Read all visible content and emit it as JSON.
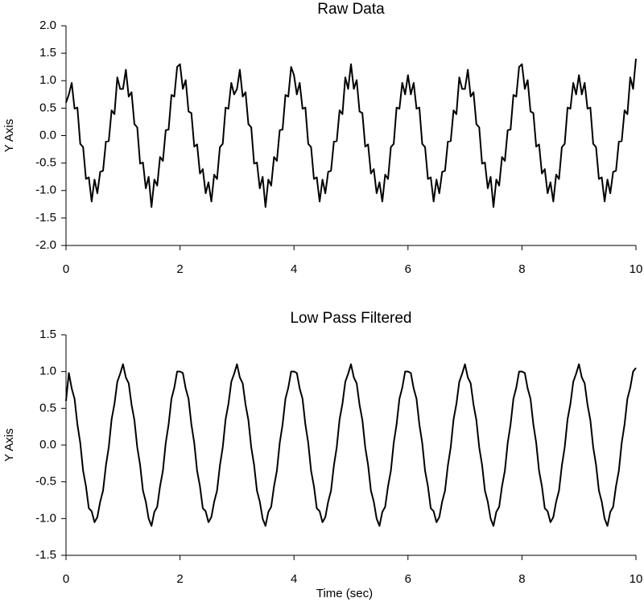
{
  "chart_data": [
    {
      "type": "line",
      "title": "Raw Data",
      "ylabel": "Y Axis",
      "xlim": [
        0,
        10
      ],
      "xticks": [
        0,
        2,
        4,
        6,
        8,
        10
      ],
      "ylim": [
        -2,
        2
      ],
      "yticks": [
        {
          "value": -2,
          "label": "-2.0"
        },
        -1.5,
        {
          "value": -1,
          "label": "-1.0"
        },
        -0.5,
        {
          "value": 0,
          "label": "0.0"
        },
        0.5,
        {
          "value": 1,
          "label": "1.0"
        },
        1.5,
        {
          "value": 2,
          "label": "2.0"
        }
      ],
      "x": [
        0,
        0.05,
        0.1,
        0.15,
        0.2,
        0.25,
        0.3,
        0.35,
        0.4,
        0.45,
        0.5,
        0.55,
        0.6,
        0.65,
        0.7,
        0.75,
        0.8,
        0.85,
        0.9,
        0.95,
        1,
        1.05,
        1.1,
        1.15,
        1.2,
        1.25,
        1.3,
        1.35,
        1.4,
        1.45,
        1.5,
        1.55,
        1.6,
        1.65,
        1.7,
        1.75,
        1.8,
        1.85,
        1.9,
        1.95,
        2,
        2.05,
        2.1,
        2.15,
        2.2,
        2.25,
        2.3,
        2.35,
        2.4,
        2.45,
        2.5,
        2.55,
        2.6,
        2.65,
        2.7,
        2.75,
        2.8,
        2.85,
        2.9,
        2.95,
        3,
        3.05,
        3.1,
        3.15,
        3.2,
        3.25,
        3.3,
        3.35,
        3.4,
        3.45,
        3.5,
        3.55,
        3.6,
        3.65,
        3.7,
        3.75,
        3.8,
        3.85,
        3.9,
        3.95,
        4,
        4.05,
        4.1,
        4.15,
        4.2,
        4.25,
        4.3,
        4.35,
        4.4,
        4.45,
        4.5,
        4.55,
        4.6,
        4.65,
        4.7,
        4.75,
        4.8,
        4.85,
        4.9,
        4.95,
        5,
        5.05,
        5.1,
        5.15,
        5.2,
        5.25,
        5.3,
        5.35,
        5.4,
        5.45,
        5.5,
        5.55,
        5.6,
        5.65,
        5.7,
        5.75,
        5.8,
        5.85,
        5.9,
        5.95,
        6,
        6.05,
        6.1,
        6.15,
        6.2,
        6.25,
        6.3,
        6.35,
        6.4,
        6.45,
        6.5,
        6.55,
        6.6,
        6.65,
        6.7,
        6.75,
        6.8,
        6.85,
        6.9,
        6.95,
        7,
        7.05,
        7.1,
        7.15,
        7.2,
        7.25,
        7.3,
        7.35,
        7.4,
        7.45,
        7.5,
        7.55,
        7.6,
        7.65,
        7.7,
        7.75,
        7.8,
        7.85,
        7.9,
        7.95,
        8,
        8.05,
        8.1,
        8.15,
        8.2,
        8.25,
        8.3,
        8.35,
        8.4,
        8.45,
        8.5,
        8.55,
        8.6,
        8.65,
        8.7,
        8.75,
        8.8,
        8.85,
        8.9,
        8.95,
        9,
        9.05,
        9.1,
        9.15,
        9.2,
        9.25,
        9.3,
        9.35,
        9.4,
        9.45,
        9.5,
        9.55,
        9.6,
        9.65,
        9.7,
        9.75,
        9.8,
        9.85,
        9.9,
        9.95,
        10
      ],
      "series": [
        {
          "color": "#000000",
          "values": [
            0.6,
            0.75,
            0.96,
            0.49,
            0.51,
            -0.15,
            -0.21,
            -0.79,
            -0.76,
            -1.2,
            -0.8,
            -1.05,
            -0.66,
            -0.64,
            -0.11,
            -0.1,
            0.46,
            0.39,
            1.06,
            0.85,
            0.85,
            1.2,
            0.71,
            0.79,
            0.21,
            0.15,
            -0.51,
            -0.49,
            -0.96,
            -0.75,
            -1.3,
            -0.8,
            -0.91,
            -0.39,
            -0.46,
            0.1,
            0.11,
            0.74,
            0.71,
            1.25,
            1.3,
            0.85,
            1.01,
            0.44,
            0.41,
            -0.2,
            -0.16,
            -0.69,
            -0.61,
            -1.05,
            -0.85,
            -1.2,
            -0.71,
            -0.79,
            -0.21,
            -0.15,
            0.51,
            0.49,
            0.96,
            0.75,
            0.85,
            1.2,
            0.71,
            0.79,
            0.21,
            0.15,
            -0.51,
            -0.49,
            -0.96,
            -0.75,
            -1.3,
            -0.8,
            -0.91,
            -0.39,
            -0.46,
            0.1,
            0.11,
            0.74,
            0.71,
            1.25,
            1.1,
            0.75,
            0.96,
            0.49,
            0.51,
            -0.15,
            -0.21,
            -0.79,
            -0.76,
            -1.2,
            -0.8,
            -1.05,
            -0.66,
            -0.64,
            -0.11,
            -0.1,
            0.46,
            0.39,
            1.06,
            0.85,
            1.3,
            0.85,
            1.01,
            0.44,
            0.41,
            -0.2,
            -0.16,
            -0.69,
            -0.61,
            -1.05,
            -0.85,
            -1.2,
            -0.71,
            -0.79,
            -0.21,
            -0.15,
            0.51,
            0.49,
            0.96,
            0.75,
            1.1,
            0.75,
            0.96,
            0.49,
            0.51,
            -0.15,
            -0.21,
            -0.79,
            -0.76,
            -1.2,
            -0.8,
            -1.05,
            -0.66,
            -0.64,
            -0.11,
            -0.1,
            0.46,
            0.39,
            1.06,
            0.85,
            0.85,
            1.2,
            0.71,
            0.79,
            0.21,
            0.15,
            -0.51,
            -0.49,
            -0.96,
            -0.75,
            -1.3,
            -0.8,
            -0.91,
            -0.39,
            -0.46,
            0.1,
            0.11,
            0.74,
            0.71,
            1.25,
            1.3,
            0.85,
            1.01,
            0.44,
            0.41,
            -0.2,
            -0.16,
            -0.69,
            -0.61,
            -1.05,
            -0.85,
            -1.2,
            -0.71,
            -0.79,
            -0.21,
            -0.15,
            0.51,
            0.49,
            0.96,
            0.75,
            1.1,
            0.75,
            0.96,
            0.49,
            0.51,
            -0.15,
            -0.21,
            -0.79,
            -0.76,
            -1.2,
            -0.8,
            -1.05,
            -0.66,
            -0.64,
            -0.11,
            -0.1,
            0.46,
            0.39,
            1.06,
            0.85,
            1.4
          ]
        }
      ]
    },
    {
      "type": "line",
      "title": "Low Pass Filtered",
      "ylabel": "Y Axis",
      "xlabel": "Time (sec)",
      "xlim": [
        0,
        10
      ],
      "xticks": [
        0,
        2,
        4,
        6,
        8,
        10
      ],
      "ylim": [
        -1.5,
        1.5
      ],
      "yticks": [
        -1.5,
        {
          "value": -1,
          "label": "-1.0"
        },
        -0.5,
        {
          "value": 0,
          "label": "0.0"
        },
        0.5,
        {
          "value": 1,
          "label": "1.0"
        },
        1.5
      ],
      "x": [
        0,
        0.05,
        0.1,
        0.15,
        0.2,
        0.25,
        0.3,
        0.35,
        0.4,
        0.45,
        0.5,
        0.55,
        0.6,
        0.65,
        0.7,
        0.75,
        0.8,
        0.85,
        0.9,
        0.95,
        1,
        1.05,
        1.1,
        1.15,
        1.2,
        1.25,
        1.3,
        1.35,
        1.4,
        1.45,
        1.5,
        1.55,
        1.6,
        1.65,
        1.7,
        1.75,
        1.8,
        1.85,
        1.9,
        1.95,
        2,
        2.05,
        2.1,
        2.15,
        2.2,
        2.25,
        2.3,
        2.35,
        2.4,
        2.45,
        2.5,
        2.55,
        2.6,
        2.65,
        2.7,
        2.75,
        2.8,
        2.85,
        2.9,
        2.95,
        3,
        3.05,
        3.1,
        3.15,
        3.2,
        3.25,
        3.3,
        3.35,
        3.4,
        3.45,
        3.5,
        3.55,
        3.6,
        3.65,
        3.7,
        3.75,
        3.8,
        3.85,
        3.9,
        3.95,
        4,
        4.05,
        4.1,
        4.15,
        4.2,
        4.25,
        4.3,
        4.35,
        4.4,
        4.45,
        4.5,
        4.55,
        4.6,
        4.65,
        4.7,
        4.75,
        4.8,
        4.85,
        4.9,
        4.95,
        5,
        5.05,
        5.1,
        5.15,
        5.2,
        5.25,
        5.3,
        5.35,
        5.4,
        5.45,
        5.5,
        5.55,
        5.6,
        5.65,
        5.7,
        5.75,
        5.8,
        5.85,
        5.9,
        5.95,
        6,
        6.05,
        6.1,
        6.15,
        6.2,
        6.25,
        6.3,
        6.35,
        6.4,
        6.45,
        6.5,
        6.55,
        6.6,
        6.65,
        6.7,
        6.75,
        6.8,
        6.85,
        6.9,
        6.95,
        7,
        7.05,
        7.1,
        7.15,
        7.2,
        7.25,
        7.3,
        7.35,
        7.4,
        7.45,
        7.5,
        7.55,
        7.6,
        7.65,
        7.7,
        7.75,
        7.8,
        7.85,
        7.9,
        7.95,
        8,
        8.05,
        8.1,
        8.15,
        8.2,
        8.25,
        8.3,
        8.35,
        8.4,
        8.45,
        8.5,
        8.55,
        8.6,
        8.65,
        8.7,
        8.75,
        8.8,
        8.85,
        8.9,
        8.95,
        9,
        9.05,
        9.1,
        9.15,
        9.2,
        9.25,
        9.3,
        9.35,
        9.4,
        9.45,
        9.5,
        9.55,
        9.6,
        9.65,
        9.7,
        9.75,
        9.8,
        9.85,
        9.9,
        9.95,
        10
      ],
      "series": [
        {
          "color": "#000000",
          "values": [
            0.6,
            0.98,
            0.77,
            0.63,
            0.28,
            0.03,
            -0.35,
            -0.56,
            -0.86,
            -0.9,
            -1.05,
            -0.98,
            -0.77,
            -0.62,
            -0.28,
            -0.03,
            0.35,
            0.56,
            0.86,
            0.97,
            1.1,
            0.92,
            0.84,
            0.55,
            0.34,
            -0.03,
            -0.27,
            -0.62,
            -0.77,
            -1.0,
            -1.1,
            -0.91,
            -0.84,
            -0.56,
            -0.35,
            0.03,
            0.28,
            0.63,
            0.78,
            1.0,
            1.0,
            0.98,
            0.77,
            0.63,
            0.28,
            0.03,
            -0.35,
            -0.56,
            -0.86,
            -0.9,
            -1.05,
            -0.98,
            -0.77,
            -0.62,
            -0.28,
            -0.03,
            0.35,
            0.56,
            0.86,
            0.97,
            1.1,
            0.92,
            0.84,
            0.55,
            0.34,
            -0.03,
            -0.27,
            -0.62,
            -0.77,
            -1.0,
            -1.1,
            -0.91,
            -0.84,
            -0.56,
            -0.35,
            0.03,
            0.28,
            0.63,
            0.78,
            1.0,
            1.0,
            0.98,
            0.77,
            0.63,
            0.28,
            0.03,
            -0.35,
            -0.56,
            -0.86,
            -0.9,
            -1.05,
            -0.98,
            -0.77,
            -0.62,
            -0.28,
            -0.03,
            0.35,
            0.56,
            0.86,
            0.97,
            1.1,
            0.92,
            0.84,
            0.55,
            0.34,
            -0.03,
            -0.27,
            -0.62,
            -0.77,
            -1.0,
            -1.1,
            -0.91,
            -0.84,
            -0.56,
            -0.35,
            0.03,
            0.28,
            0.63,
            0.78,
            1.0,
            1.0,
            0.98,
            0.77,
            0.63,
            0.28,
            0.03,
            -0.35,
            -0.56,
            -0.86,
            -0.9,
            -1.05,
            -0.98,
            -0.77,
            -0.62,
            -0.28,
            -0.03,
            0.35,
            0.56,
            0.86,
            0.97,
            1.1,
            0.92,
            0.84,
            0.55,
            0.34,
            -0.03,
            -0.27,
            -0.62,
            -0.77,
            -1.0,
            -1.1,
            -0.91,
            -0.84,
            -0.56,
            -0.35,
            0.03,
            0.28,
            0.63,
            0.78,
            1.0,
            1.0,
            0.98,
            0.77,
            0.63,
            0.28,
            0.03,
            -0.35,
            -0.56,
            -0.86,
            -0.9,
            -1.05,
            -0.98,
            -0.77,
            -0.62,
            -0.28,
            -0.03,
            0.35,
            0.56,
            0.86,
            0.97,
            1.1,
            0.92,
            0.84,
            0.55,
            0.34,
            -0.03,
            -0.27,
            -0.62,
            -0.77,
            -1.0,
            -1.1,
            -0.91,
            -0.84,
            -0.56,
            -0.35,
            0.03,
            0.28,
            0.63,
            0.78,
            1.0,
            1.05
          ]
        }
      ]
    }
  ]
}
